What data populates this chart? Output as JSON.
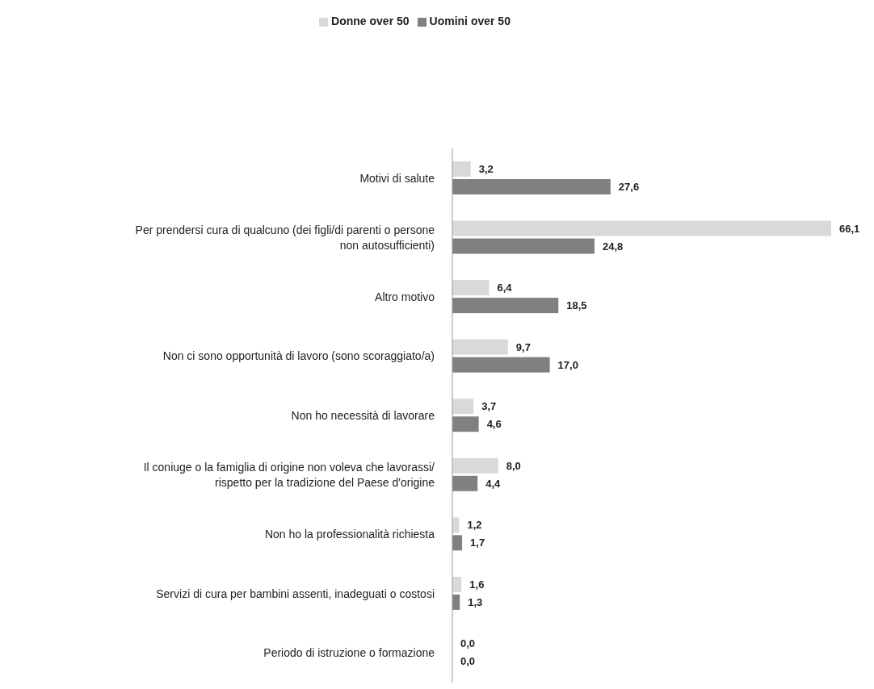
{
  "chart_data": {
    "type": "bar",
    "orientation": "horizontal",
    "categories": [
      "Motivi di salute",
      "Per prendersi cura di qualcuno (dei figli/di parenti o persone non autosufficienti)",
      "Altro motivo",
      "Non ci sono opportunità di lavoro (sono scoraggiato/a)",
      "Non ho necessità di lavorare",
      "Il coniuge o la famiglia di origine non voleva che lavorassi/ rispetto per la tradizione del Paese d'origine",
      "Non ho la professionalità richiesta",
      "Servizi di cura per bambini assenti, inadeguati o costosi",
      "Periodo di istruzione o formazione"
    ],
    "series": [
      {
        "name": "Donne over 50",
        "color": "#d9d9d9",
        "values": [
          3.2,
          66.1,
          6.4,
          9.7,
          3.7,
          8.0,
          1.2,
          1.6,
          0.0
        ],
        "value_labels": [
          "3,2",
          "66,1",
          "6,4",
          "9,7",
          "3,7",
          "8,0",
          "1,2",
          "1,6",
          "0,0"
        ]
      },
      {
        "name": "Uomini over 50",
        "color": "#808080",
        "values": [
          27.6,
          24.8,
          18.5,
          17.0,
          4.6,
          4.4,
          1.7,
          1.3,
          0.0
        ],
        "value_labels": [
          "27,6",
          "24,8",
          "18,5",
          "17,0",
          "4,6",
          "4,4",
          "1,7",
          "1,3",
          "0,0"
        ]
      }
    ],
    "legend": "top",
    "tick_labels": "y"
  }
}
